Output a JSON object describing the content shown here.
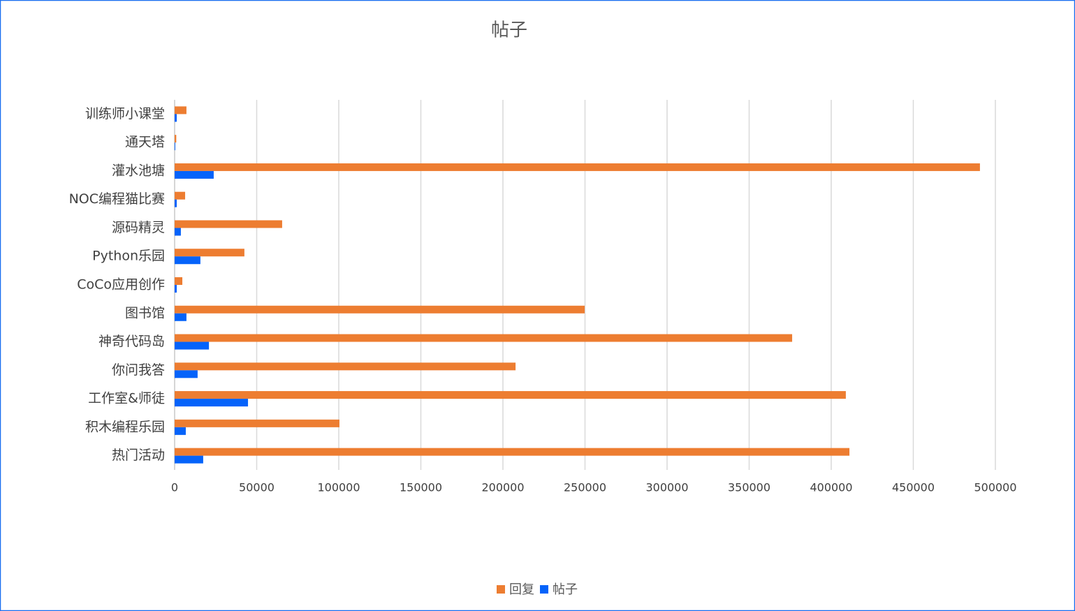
{
  "chart_data": {
    "type": "bar",
    "orientation": "horizontal",
    "title": "帖子",
    "categories": [
      "训练师小课堂",
      "通天塔",
      "灌水池塘",
      "NOC编程猫比赛",
      "源码精灵",
      "Python乐园",
      "CoCo应用创作",
      "图书馆",
      "神奇代码岛",
      "你问我答",
      "工作室&师徒",
      "积木编程乐园",
      "热门活动"
    ],
    "series": [
      {
        "name": "回复",
        "color": "#ed7d31",
        "values": [
          7200,
          1000,
          490600,
          6400,
          65500,
          42500,
          4700,
          249800,
          376200,
          207700,
          408900,
          100400,
          411100
        ]
      },
      {
        "name": "帖子",
        "color": "#0563fa",
        "values": [
          1300,
          400,
          23800,
          1300,
          3800,
          15700,
          1300,
          7200,
          20900,
          14000,
          44700,
          6800,
          17400
        ]
      }
    ],
    "xlim": [
      0,
      500000
    ],
    "xticks": [
      0,
      50000,
      100000,
      150000,
      200000,
      250000,
      300000,
      350000,
      400000,
      450000,
      500000
    ],
    "grid": true,
    "legend": "bottom"
  }
}
